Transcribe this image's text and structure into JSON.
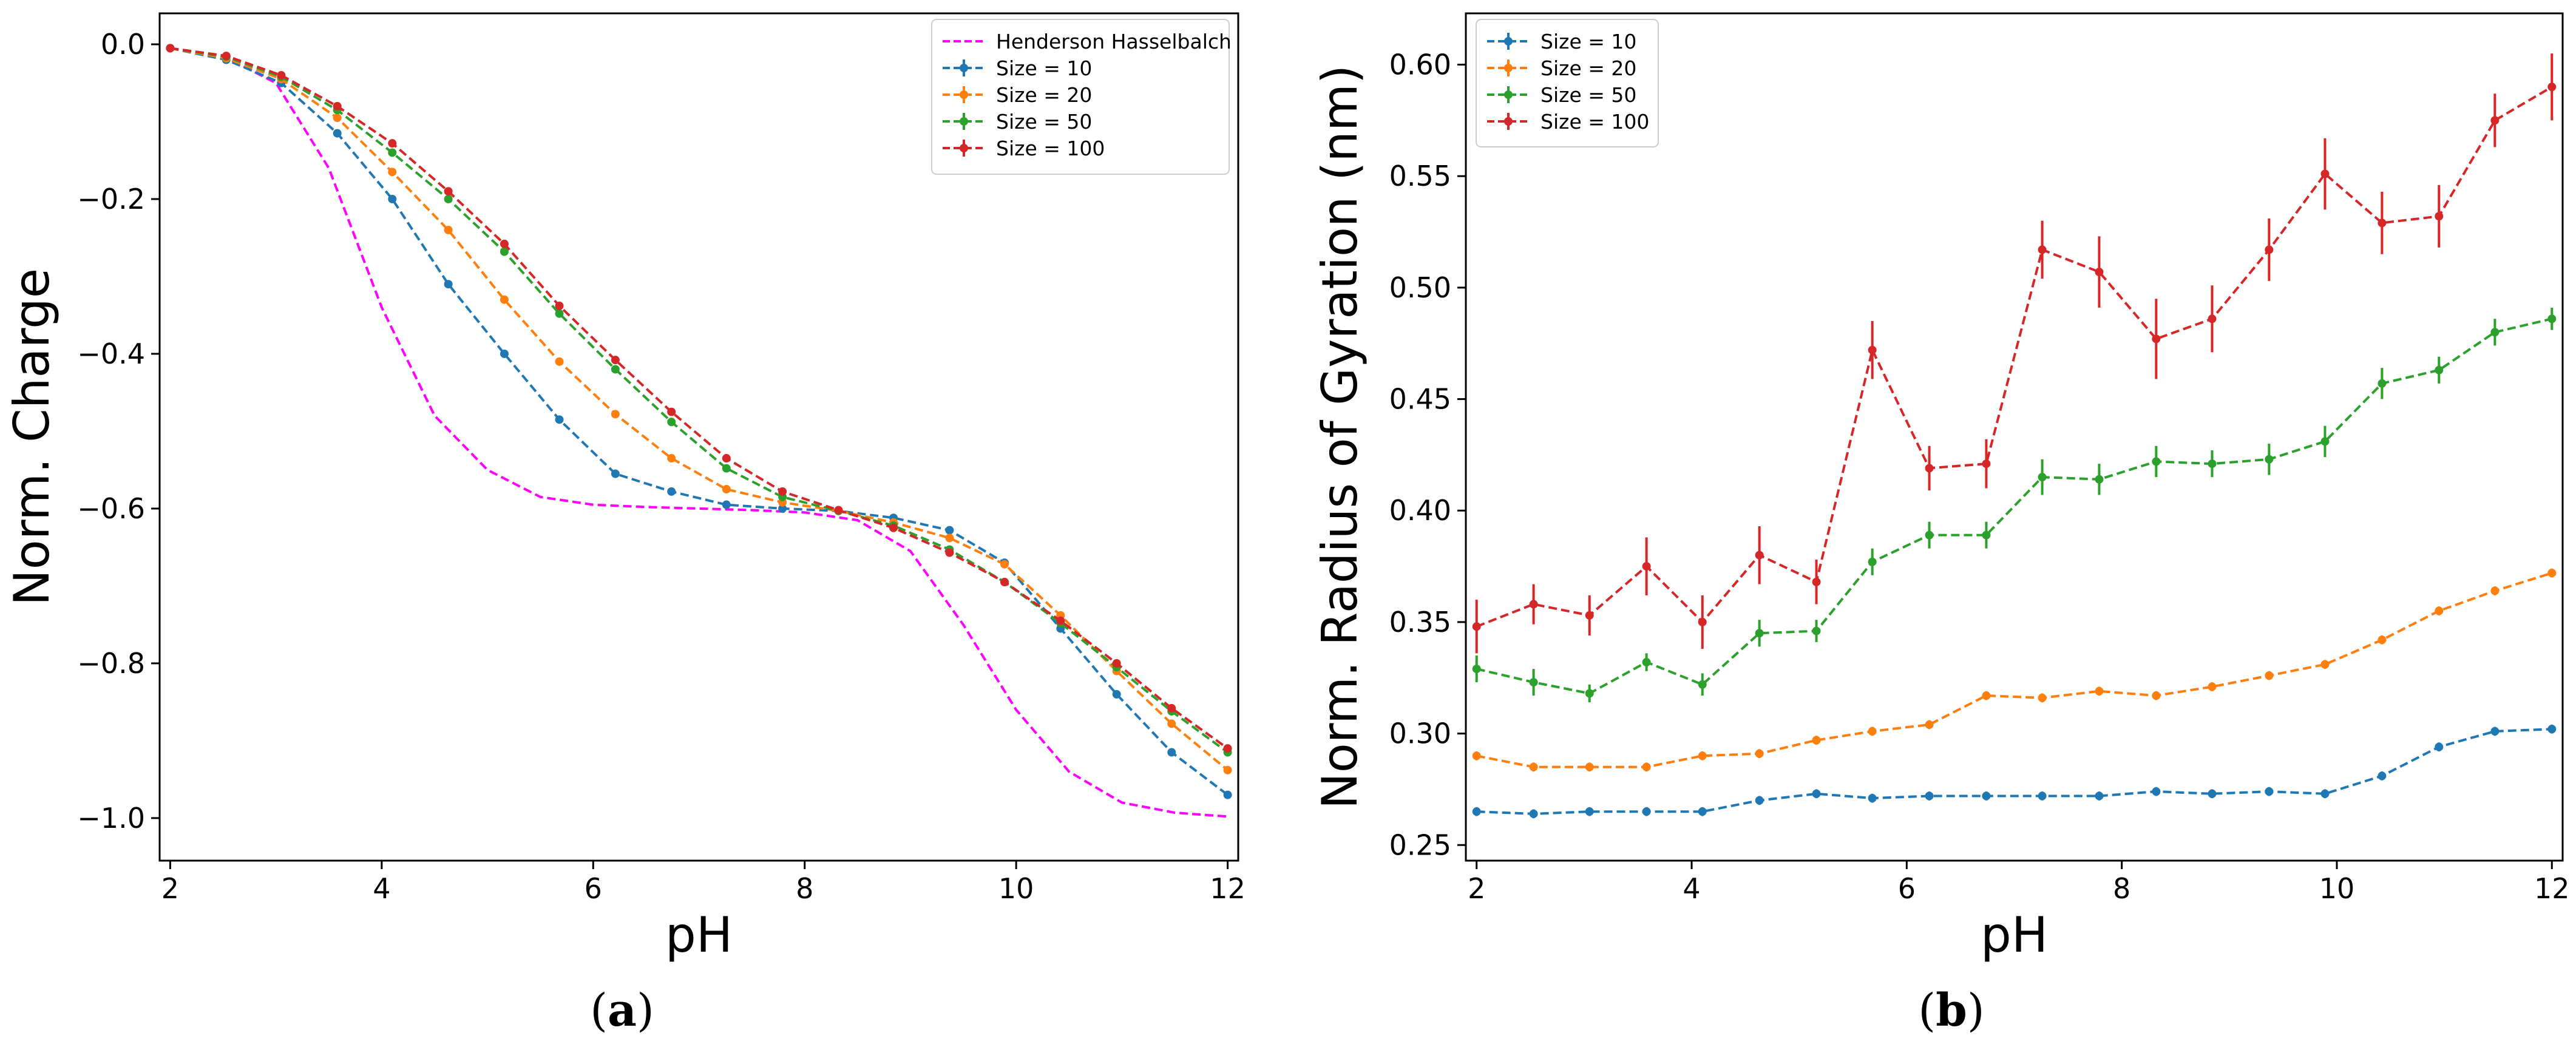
{
  "figure": {
    "captions": [
      {
        "open": "(",
        "letter": "a",
        "close": ")"
      },
      {
        "open": "(",
        "letter": "b",
        "close": ")"
      }
    ]
  },
  "chart_data": [
    {
      "type": "line",
      "xlabel": "pH",
      "ylabel": "Norm. Charge",
      "xlim": [
        1.9,
        12.1
      ],
      "ylim": [
        -1.055,
        0.04
      ],
      "xticks": [
        2,
        4,
        6,
        8,
        10,
        12
      ],
      "yticks": [
        0.0,
        -0.2,
        -0.4,
        -0.6,
        -0.8,
        -1.0
      ],
      "ytick_labels": [
        "0.0",
        "−0.2",
        "−0.4",
        "−0.6",
        "−0.8",
        "−1.0"
      ],
      "legend_position": "top-right",
      "grid": false,
      "series": [
        {
          "name": "Henderson Hasselbalch",
          "color": "#ff00ff",
          "markers": false,
          "x": [
            2.0,
            2.5,
            3.0,
            3.5,
            4.0,
            4.5,
            5.0,
            5.5,
            6.0,
            6.5,
            7.0,
            7.5,
            8.0,
            8.5,
            9.0,
            9.5,
            10.0,
            10.5,
            11.0,
            11.5,
            12.0
          ],
          "y": [
            -0.005,
            -0.015,
            -0.05,
            -0.16,
            -0.34,
            -0.48,
            -0.55,
            -0.585,
            -0.595,
            -0.598,
            -0.6,
            -0.602,
            -0.605,
            -0.615,
            -0.655,
            -0.75,
            -0.86,
            -0.94,
            -0.98,
            -0.993,
            -0.998
          ]
        },
        {
          "name": "Size = 10",
          "color": "#1f77b4",
          "markers": true,
          "x": [
            2.0,
            2.53,
            3.05,
            3.58,
            4.1,
            4.63,
            5.16,
            5.68,
            6.21,
            6.74,
            7.26,
            7.79,
            8.32,
            8.84,
            9.37,
            9.89,
            10.42,
            10.95,
            11.47,
            12.0
          ],
          "y": [
            -0.005,
            -0.02,
            -0.05,
            -0.115,
            -0.2,
            -0.31,
            -0.4,
            -0.485,
            -0.555,
            -0.578,
            -0.595,
            -0.6,
            -0.603,
            -0.612,
            -0.628,
            -0.67,
            -0.755,
            -0.84,
            -0.915,
            -0.97
          ]
        },
        {
          "name": "Size = 20",
          "color": "#ff7f0e",
          "markers": true,
          "x": [
            2.0,
            2.53,
            3.05,
            3.58,
            4.1,
            4.63,
            5.16,
            5.68,
            6.21,
            6.74,
            7.26,
            7.79,
            8.32,
            8.84,
            9.37,
            9.89,
            10.42,
            10.95,
            11.47,
            12.0
          ],
          "y": [
            -0.005,
            -0.018,
            -0.045,
            -0.095,
            -0.165,
            -0.24,
            -0.33,
            -0.41,
            -0.478,
            -0.535,
            -0.575,
            -0.592,
            -0.603,
            -0.618,
            -0.638,
            -0.672,
            -0.738,
            -0.81,
            -0.878,
            -0.938
          ]
        },
        {
          "name": "Size = 50",
          "color": "#2ca02c",
          "markers": true,
          "x": [
            2.0,
            2.53,
            3.05,
            3.58,
            4.1,
            4.63,
            5.16,
            5.68,
            6.21,
            6.74,
            7.26,
            7.79,
            8.32,
            8.84,
            9.37,
            9.89,
            10.42,
            10.95,
            11.47,
            12.0
          ],
          "y": [
            -0.005,
            -0.016,
            -0.042,
            -0.085,
            -0.14,
            -0.2,
            -0.268,
            -0.348,
            -0.42,
            -0.488,
            -0.548,
            -0.585,
            -0.603,
            -0.622,
            -0.653,
            -0.695,
            -0.748,
            -0.805,
            -0.862,
            -0.915
          ]
        },
        {
          "name": "Size = 100",
          "color": "#d62728",
          "markers": true,
          "x": [
            2.0,
            2.53,
            3.05,
            3.58,
            4.1,
            4.63,
            5.16,
            5.68,
            6.21,
            6.74,
            7.26,
            7.79,
            8.32,
            8.84,
            9.37,
            9.89,
            10.42,
            10.95,
            11.47,
            12.0
          ],
          "y": [
            -0.005,
            -0.015,
            -0.04,
            -0.08,
            -0.128,
            -0.19,
            -0.258,
            -0.338,
            -0.408,
            -0.475,
            -0.535,
            -0.578,
            -0.602,
            -0.625,
            -0.657,
            -0.695,
            -0.745,
            -0.8,
            -0.858,
            -0.91
          ]
        }
      ]
    },
    {
      "type": "line",
      "xlabel": "pH",
      "ylabel": "Norm. Radius of Gyration (nm)",
      "xlim": [
        1.9,
        12.1
      ],
      "ylim": [
        0.243,
        0.623
      ],
      "xticks": [
        2,
        4,
        6,
        8,
        10,
        12
      ],
      "yticks": [
        0.25,
        0.3,
        0.35,
        0.4,
        0.45,
        0.5,
        0.55,
        0.6
      ],
      "ytick_labels": [
        "0.25",
        "0.30",
        "0.35",
        "0.40",
        "0.45",
        "0.50",
        "0.55",
        "0.60"
      ],
      "legend_position": "top-left",
      "grid": false,
      "series": [
        {
          "name": "Size = 10",
          "color": "#1f77b4",
          "markers": true,
          "x": [
            2.0,
            2.53,
            3.05,
            3.58,
            4.1,
            4.63,
            5.16,
            5.68,
            6.21,
            6.74,
            7.26,
            7.79,
            8.32,
            8.84,
            9.37,
            9.89,
            10.42,
            10.95,
            11.47,
            12.0
          ],
          "y": [
            0.265,
            0.264,
            0.265,
            0.265,
            0.265,
            0.27,
            0.273,
            0.271,
            0.272,
            0.272,
            0.272,
            0.272,
            0.274,
            0.273,
            0.274,
            0.273,
            0.281,
            0.294,
            0.301,
            0.302
          ],
          "err": [
            0.002,
            0.002,
            0.002,
            0.002,
            0.002,
            0.002,
            0.002,
            0.002,
            0.002,
            0.002,
            0.002,
            0.002,
            0.002,
            0.002,
            0.002,
            0.002,
            0.002,
            0.002,
            0.002,
            0.002
          ]
        },
        {
          "name": "Size = 20",
          "color": "#ff7f0e",
          "markers": true,
          "x": [
            2.0,
            2.53,
            3.05,
            3.58,
            4.1,
            4.63,
            5.16,
            5.68,
            6.21,
            6.74,
            7.26,
            7.79,
            8.32,
            8.84,
            9.37,
            9.89,
            10.42,
            10.95,
            11.47,
            12.0
          ],
          "y": [
            0.29,
            0.285,
            0.285,
            0.285,
            0.29,
            0.291,
            0.297,
            0.301,
            0.304,
            0.317,
            0.316,
            0.319,
            0.317,
            0.321,
            0.326,
            0.331,
            0.342,
            0.355,
            0.364,
            0.372
          ],
          "err": [
            0.002,
            0.002,
            0.002,
            0.002,
            0.002,
            0.002,
            0.002,
            0.002,
            0.002,
            0.002,
            0.002,
            0.002,
            0.002,
            0.002,
            0.002,
            0.002,
            0.002,
            0.002,
            0.002,
            0.002
          ]
        },
        {
          "name": "Size = 50",
          "color": "#2ca02c",
          "markers": true,
          "x": [
            2.0,
            2.53,
            3.05,
            3.58,
            4.1,
            4.63,
            5.16,
            5.68,
            6.21,
            6.74,
            7.26,
            7.79,
            8.32,
            8.84,
            9.37,
            9.89,
            10.42,
            10.95,
            11.47,
            12.0
          ],
          "y": [
            0.329,
            0.323,
            0.318,
            0.332,
            0.322,
            0.345,
            0.346,
            0.377,
            0.389,
            0.389,
            0.415,
            0.414,
            0.422,
            0.421,
            0.423,
            0.431,
            0.457,
            0.463,
            0.48,
            0.486
          ],
          "err": [
            0.006,
            0.006,
            0.004,
            0.004,
            0.005,
            0.006,
            0.005,
            0.006,
            0.006,
            0.006,
            0.008,
            0.007,
            0.007,
            0.006,
            0.007,
            0.007,
            0.007,
            0.006,
            0.006,
            0.005
          ]
        },
        {
          "name": "Size = 100",
          "color": "#d62728",
          "markers": true,
          "x": [
            2.0,
            2.53,
            3.05,
            3.58,
            4.1,
            4.63,
            5.16,
            5.68,
            6.21,
            6.74,
            7.26,
            7.79,
            8.32,
            8.84,
            9.37,
            9.89,
            10.42,
            10.95,
            11.47,
            12.0
          ],
          "y": [
            0.348,
            0.358,
            0.353,
            0.375,
            0.35,
            0.38,
            0.368,
            0.472,
            0.419,
            0.421,
            0.517,
            0.507,
            0.477,
            0.486,
            0.517,
            0.551,
            0.529,
            0.532,
            0.575,
            0.59
          ],
          "err": [
            0.012,
            0.009,
            0.009,
            0.013,
            0.012,
            0.013,
            0.01,
            0.013,
            0.01,
            0.011,
            0.013,
            0.016,
            0.018,
            0.015,
            0.014,
            0.016,
            0.014,
            0.014,
            0.012,
            0.015
          ]
        }
      ]
    }
  ]
}
